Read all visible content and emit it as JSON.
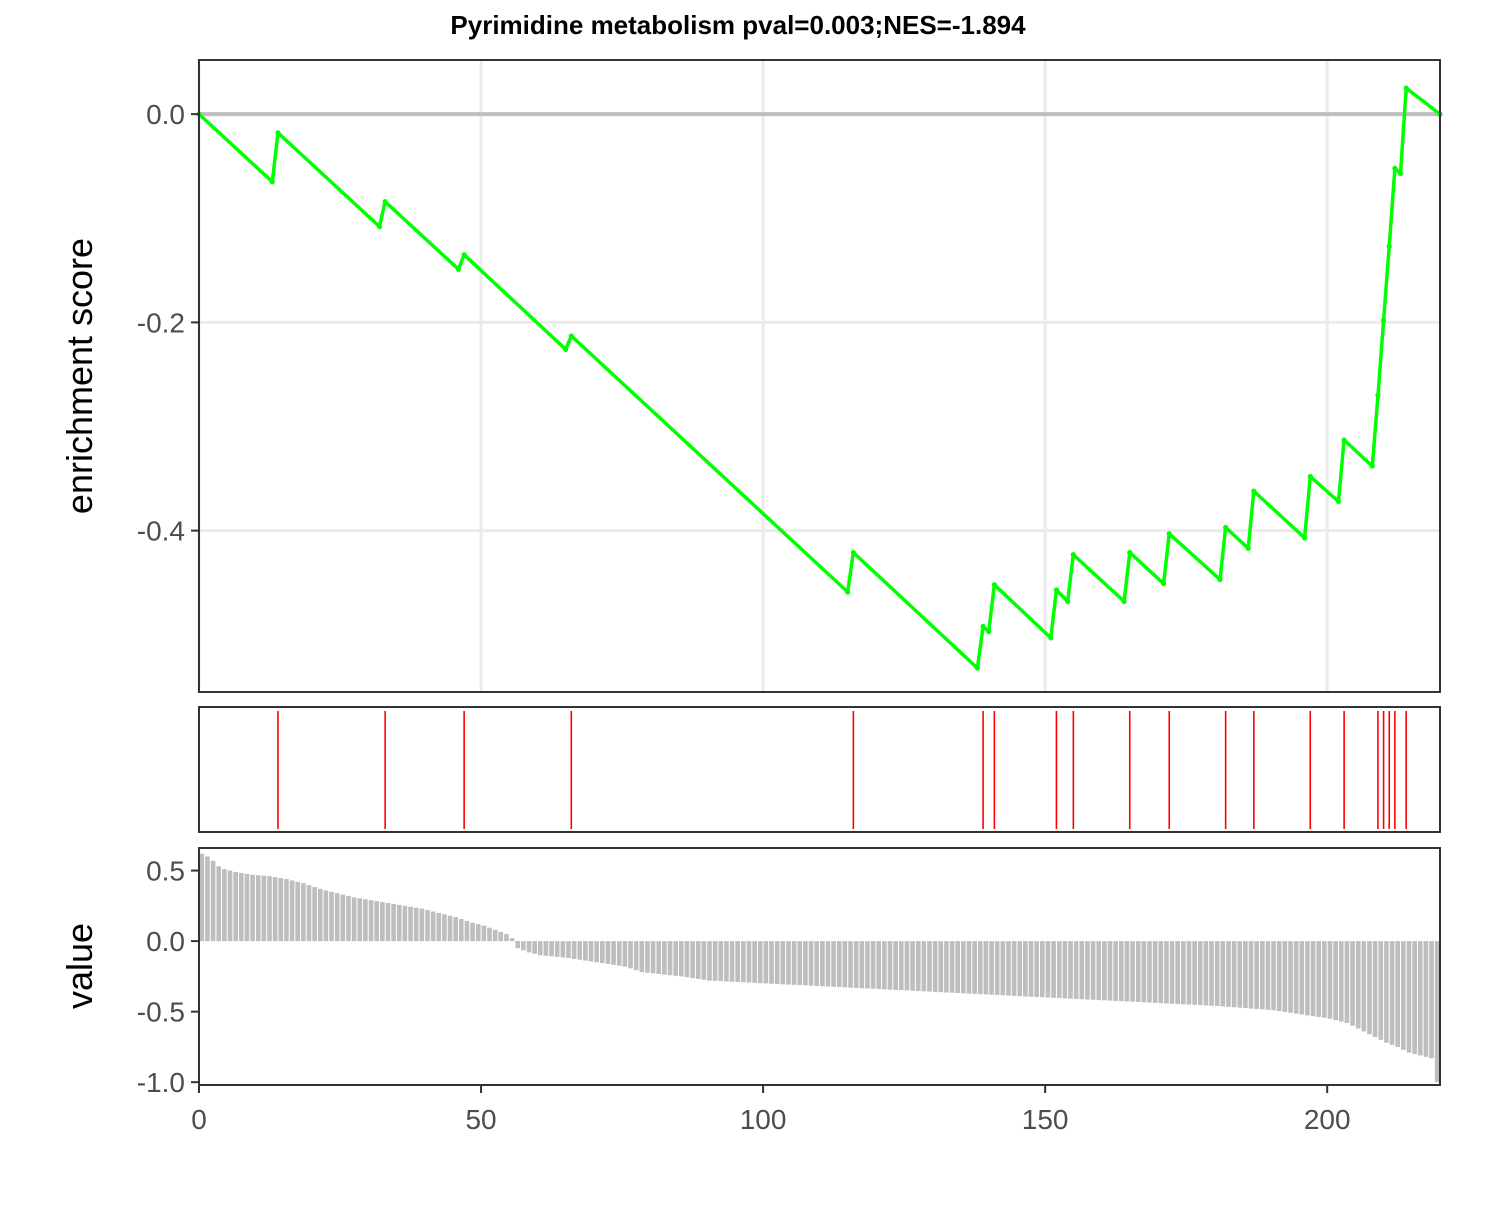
{
  "chart_data": {
    "type": "line",
    "title": "Pyrimidine metabolism pval=0.003;NES=-1.894",
    "xlabel": "",
    "xlim": [
      0,
      220
    ],
    "x_ticks": [
      0,
      50,
      100,
      150,
      200
    ],
    "x_tick_labels": [
      "0",
      "50",
      "100",
      "150",
      "200"
    ],
    "grid": true,
    "panels": {
      "enrichment": {
        "ylabel": "enrichment score",
        "ylim": [
          -0.555,
          0.052
        ],
        "y_ticks": [
          0.0,
          -0.2,
          -0.4
        ],
        "y_tick_labels": [
          "0.0",
          "-0.2",
          "-0.4"
        ],
        "line_color": "#00ff00",
        "zero_line_color": "#bebebe",
        "points": [
          [
            0,
            0.0
          ],
          [
            13,
            -0.065
          ],
          [
            14,
            -0.018
          ],
          [
            32,
            -0.108
          ],
          [
            33,
            -0.084
          ],
          [
            46,
            -0.149
          ],
          [
            47,
            -0.135
          ],
          [
            65,
            -0.226
          ],
          [
            66,
            -0.213
          ],
          [
            115,
            -0.459
          ],
          [
            116,
            -0.421
          ],
          [
            138,
            -0.532
          ],
          [
            139,
            -0.492
          ],
          [
            140,
            -0.497
          ],
          [
            141,
            -0.452
          ],
          [
            151,
            -0.503
          ],
          [
            152,
            -0.457
          ],
          [
            154,
            -0.468
          ],
          [
            155,
            -0.423
          ],
          [
            164,
            -0.468
          ],
          [
            165,
            -0.421
          ],
          [
            171,
            -0.451
          ],
          [
            172,
            -0.403
          ],
          [
            181,
            -0.447
          ],
          [
            182,
            -0.397
          ],
          [
            186,
            -0.417
          ],
          [
            187,
            -0.362
          ],
          [
            196,
            -0.407
          ],
          [
            197,
            -0.348
          ],
          [
            202,
            -0.372
          ],
          [
            203,
            -0.313
          ],
          [
            208,
            -0.338
          ],
          [
            209,
            -0.27
          ],
          [
            210,
            -0.198
          ],
          [
            211,
            -0.127
          ],
          [
            212,
            -0.052
          ],
          [
            213,
            -0.057
          ],
          [
            214,
            0.025
          ],
          [
            220,
            0.0
          ]
        ]
      },
      "hits": {
        "color": "#ff0000",
        "positions": [
          14,
          33,
          47,
          66,
          116,
          139,
          141,
          152,
          155,
          165,
          172,
          182,
          187,
          197,
          203,
          209,
          210,
          211,
          212,
          214
        ]
      },
      "ranked_values": {
        "ylabel": "value",
        "ylim": [
          -1.02,
          0.66
        ],
        "y_ticks": [
          0.5,
          0.0,
          -0.5,
          -1.0
        ],
        "y_tick_labels": [
          "0.5",
          "0.0",
          "-0.5",
          "-1.0"
        ],
        "bar_color": "#bebebe",
        "keypoints": [
          [
            0,
            0.62
          ],
          [
            1,
            0.6
          ],
          [
            2,
            0.57
          ],
          [
            3,
            0.53
          ],
          [
            4,
            0.51
          ],
          [
            6,
            0.49
          ],
          [
            9,
            0.47
          ],
          [
            12,
            0.46
          ],
          [
            15,
            0.44
          ],
          [
            18,
            0.41
          ],
          [
            21,
            0.37
          ],
          [
            24,
            0.34
          ],
          [
            27,
            0.31
          ],
          [
            30,
            0.29
          ],
          [
            33,
            0.27
          ],
          [
            36,
            0.25
          ],
          [
            39,
            0.23
          ],
          [
            42,
            0.2
          ],
          [
            45,
            0.17
          ],
          [
            48,
            0.13
          ],
          [
            50,
            0.11
          ],
          [
            52,
            0.08
          ],
          [
            54,
            0.05
          ],
          [
            55,
            0.02
          ],
          [
            56,
            -0.05
          ],
          [
            58,
            -0.08
          ],
          [
            60,
            -0.1
          ],
          [
            65,
            -0.12
          ],
          [
            70,
            -0.15
          ],
          [
            75,
            -0.18
          ],
          [
            78,
            -0.22
          ],
          [
            85,
            -0.25
          ],
          [
            90,
            -0.28
          ],
          [
            100,
            -0.3
          ],
          [
            110,
            -0.32
          ],
          [
            120,
            -0.34
          ],
          [
            130,
            -0.36
          ],
          [
            140,
            -0.38
          ],
          [
            150,
            -0.4
          ],
          [
            160,
            -0.42
          ],
          [
            170,
            -0.44
          ],
          [
            180,
            -0.46
          ],
          [
            190,
            -0.49
          ],
          [
            195,
            -0.52
          ],
          [
            200,
            -0.55
          ],
          [
            203,
            -0.58
          ],
          [
            205,
            -0.62
          ],
          [
            207,
            -0.66
          ],
          [
            208,
            -0.68
          ],
          [
            210,
            -0.72
          ],
          [
            212,
            -0.75
          ],
          [
            214,
            -0.79
          ],
          [
            216,
            -0.81
          ],
          [
            218,
            -0.83
          ],
          [
            219,
            -1.0
          ]
        ]
      }
    }
  }
}
